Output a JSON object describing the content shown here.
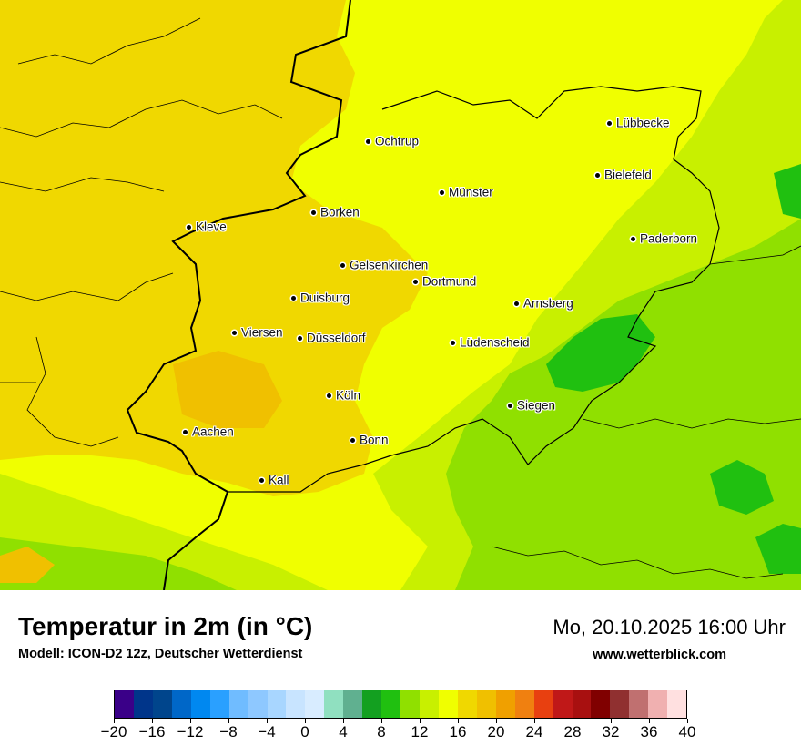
{
  "title": "Temperatur in 2m (in °C)",
  "model": "Modell: ICON-D2 12z, Deutscher Wetterdienst",
  "datetime": "Mo, 20.10.2025 16:00 Uhr",
  "website": "www.wetterblick.com",
  "cities": [
    {
      "name": "Ochtrup"
    },
    {
      "name": "Lübbecke"
    },
    {
      "name": "Bielefeld"
    },
    {
      "name": "Münster"
    },
    {
      "name": "Borken"
    },
    {
      "name": "Kleve"
    },
    {
      "name": "Paderborn"
    },
    {
      "name": "Gelsenkirchen"
    },
    {
      "name": "Dortmund"
    },
    {
      "name": "Duisburg"
    },
    {
      "name": "Arnsberg"
    },
    {
      "name": "Viersen"
    },
    {
      "name": "Düsseldorf"
    },
    {
      "name": "Lüdenscheid"
    },
    {
      "name": "Köln"
    },
    {
      "name": "Siegen"
    },
    {
      "name": "Aachen"
    },
    {
      "name": "Bonn"
    },
    {
      "name": "Kall"
    }
  ],
  "legend": {
    "unit": "°C",
    "tick_labels": [
      "−20",
      "−16",
      "−12",
      "−8",
      "−4",
      "0",
      "4",
      "8",
      "12",
      "16",
      "20",
      "24",
      "28",
      "32",
      "36",
      "40"
    ],
    "colors": [
      "#3a0088",
      "#00358a",
      "#00458c",
      "#0067c8",
      "#0088f0",
      "#2aa0ff",
      "#70bcff",
      "#8ec8ff",
      "#a8d6ff",
      "#c8e4ff",
      "#d8ecff",
      "#90e0c0",
      "#60b090",
      "#13a020",
      "#20c010",
      "#90e000",
      "#c8f000",
      "#f0ff00",
      "#f0d800",
      "#f0c000",
      "#f0a000",
      "#f08010",
      "#e84010",
      "#c01818",
      "#a81010",
      "#800000",
      "#903030",
      "#c07070",
      "#f0b0b0",
      "#ffe0e0"
    ]
  },
  "colors": {
    "warm_orange": "#f0c000",
    "orange_yellow": "#f0d800",
    "yellow": "#f0ff00",
    "yellow_green": "#c8f000",
    "light_green": "#90e000",
    "green": "#20c010"
  }
}
